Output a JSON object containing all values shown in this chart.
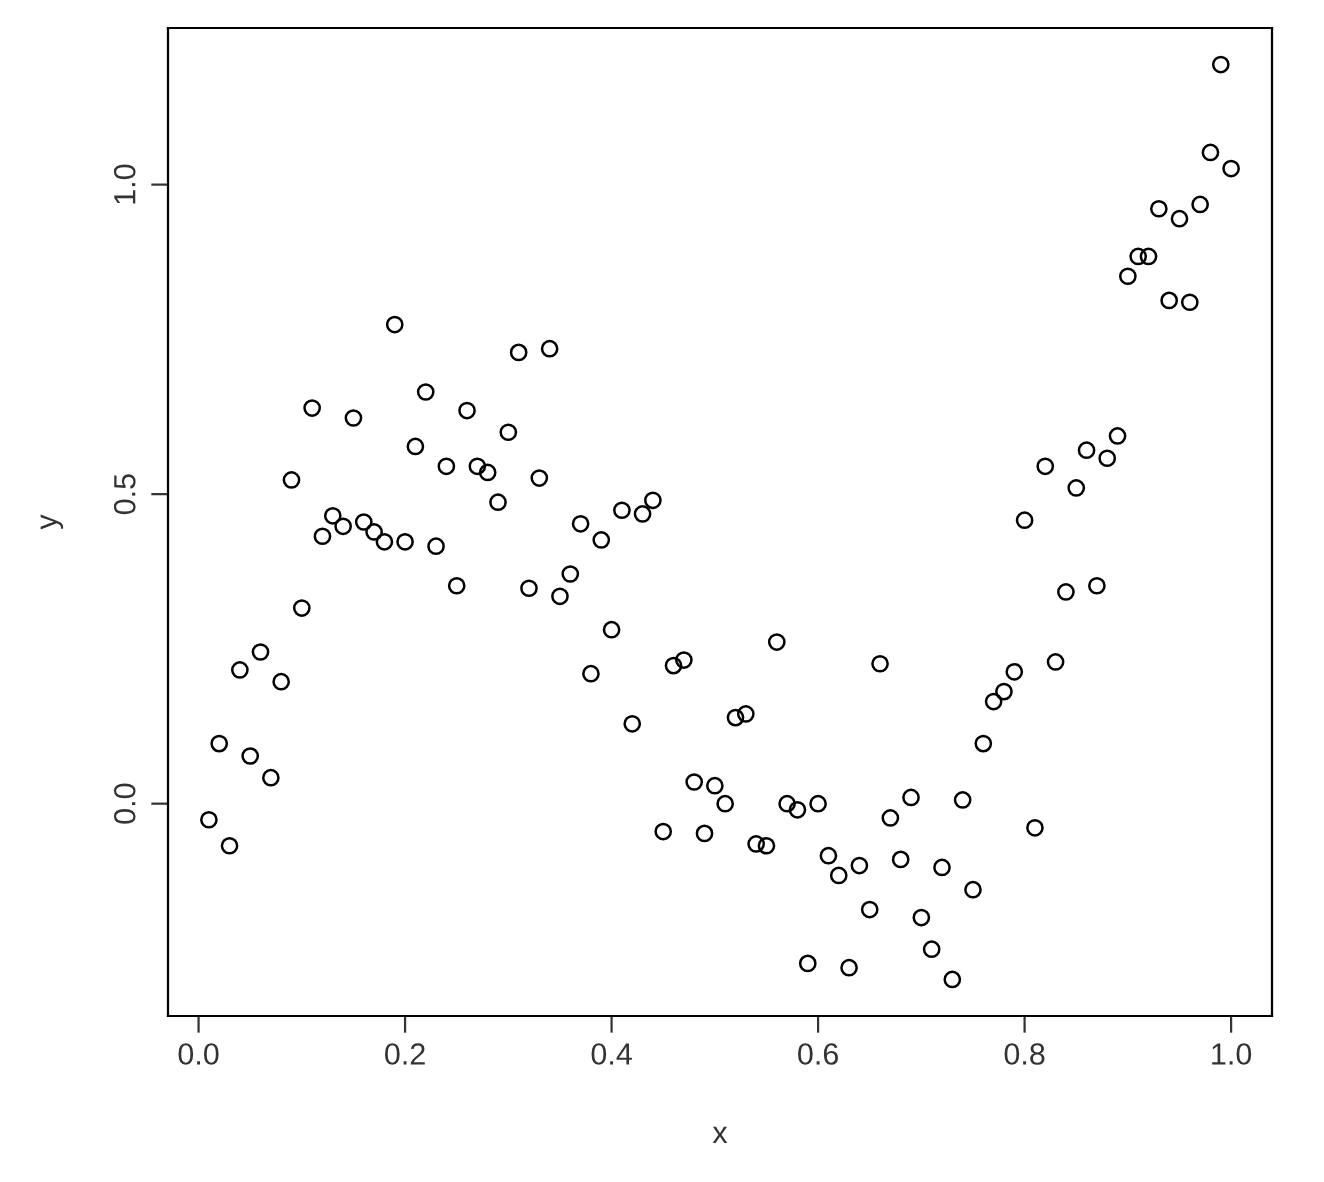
{
  "chart_data": {
    "type": "scatter",
    "xlabel": "x",
    "ylabel": "y",
    "marker": "circle",
    "grid": false,
    "legend": false,
    "xlim": [
      -0.0296,
      1.0396
    ],
    "ylim": [
      -0.343,
      1.253
    ],
    "xticks": [
      {
        "value": 0,
        "label": "0.0"
      },
      0.2,
      0.4,
      0.6,
      0.8,
      {
        "value": 1,
        "label": "1.0"
      }
    ],
    "yticks": [
      {
        "value": 0,
        "label": "0.0"
      },
      0.5,
      {
        "value": 1,
        "label": "1.0"
      }
    ],
    "series": [
      {
        "color": "#000000",
        "x": [
          0.01,
          0.02,
          0.03,
          0.04,
          0.05,
          0.06,
          0.07,
          0.08,
          0.09,
          0.1,
          0.11,
          0.12,
          0.13,
          0.14,
          0.15,
          0.16,
          0.17,
          0.18,
          0.19,
          0.2,
          0.21,
          0.22,
          0.23,
          0.24,
          0.25,
          0.26,
          0.27,
          0.28,
          0.29,
          0.3,
          0.31,
          0.32,
          0.33,
          0.34,
          0.35,
          0.36,
          0.37,
          0.38,
          0.39,
          0.4,
          0.41,
          0.42,
          0.43,
          0.44,
          0.45,
          0.46,
          0.47,
          0.48,
          0.49,
          0.5,
          0.51,
          0.52,
          0.53,
          0.54,
          0.55,
          0.56,
          0.57,
          0.58,
          0.59,
          0.6,
          0.61,
          0.62,
          0.63,
          0.64,
          0.65,
          0.66,
          0.67,
          0.68,
          0.69,
          0.7,
          0.71,
          0.72,
          0.73,
          0.74,
          0.75,
          0.76,
          0.77,
          0.78,
          0.79,
          0.8,
          0.81,
          0.82,
          0.83,
          0.84,
          0.85,
          0.86,
          0.87,
          0.88,
          0.89,
          0.9,
          0.91,
          0.92,
          0.93,
          0.94,
          0.95,
          0.96,
          0.97,
          0.98,
          0.99,
          1.0
        ],
        "values": [
          -0.026,
          0.097,
          -0.068,
          0.216,
          0.077,
          0.245,
          0.042,
          0.197,
          0.523,
          0.316,
          0.639,
          0.432,
          0.465,
          0.448,
          0.623,
          0.455,
          0.439,
          0.423,
          0.774,
          0.423,
          0.577,
          0.665,
          0.416,
          0.545,
          0.352,
          0.635,
          0.545,
          0.535,
          0.487,
          0.6,
          0.729,
          0.348,
          0.526,
          0.735,
          0.335,
          0.371,
          0.452,
          0.21,
          0.426,
          0.281,
          0.474,
          0.129,
          0.468,
          0.49,
          -0.045,
          0.223,
          0.232,
          0.035,
          -0.048,
          0.029,
          0.0,
          0.139,
          0.145,
          -0.065,
          -0.068,
          0.261,
          0.0,
          -0.01,
          -0.258,
          0.0,
          -0.084,
          -0.116,
          -0.265,
          -0.1,
          -0.171,
          0.226,
          -0.023,
          -0.09,
          0.01,
          -0.184,
          -0.235,
          -0.103,
          -0.284,
          0.006,
          -0.139,
          0.097,
          0.165,
          0.181,
          0.213,
          0.458,
          -0.039,
          0.545,
          0.229,
          0.342,
          0.51,
          0.571,
          0.352,
          0.558,
          0.594,
          0.852,
          0.884,
          0.884,
          0.961,
          0.813,
          0.945,
          0.81,
          0.968,
          1.052,
          1.194,
          1.026
        ]
      }
    ]
  }
}
